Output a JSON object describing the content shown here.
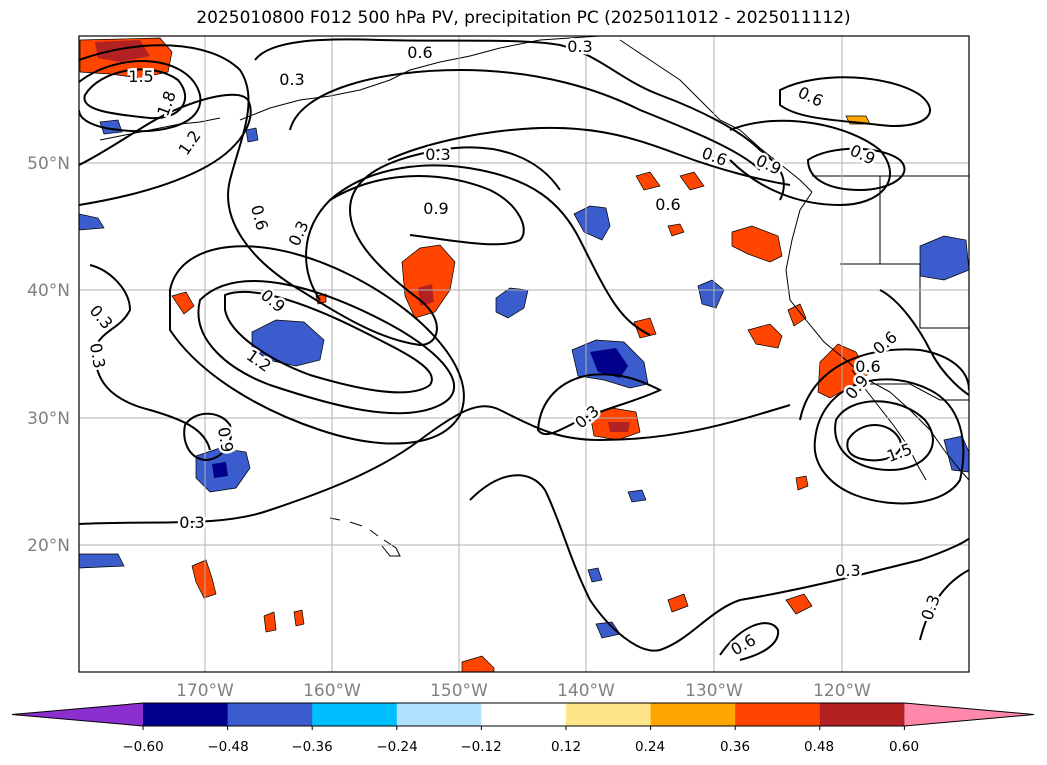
{
  "title": "2025010800 F012 500 hPa PV, precipitation PC (2025011012 - 2025011112)",
  "map": {
    "lat_labels": [
      "50°N",
      "40°N",
      "30°N",
      "20°N"
    ],
    "lon_labels": [
      "170°W",
      "160°W",
      "150°W",
      "140°W",
      "130°W",
      "120°W"
    ],
    "contour_labels": [
      "1.5",
      "1.8",
      "1.2",
      "0.3",
      "0.6",
      "0.6",
      "0.3",
      "0.3",
      "0.6",
      "0.9",
      "0.3",
      "0.9",
      "0.6",
      "0.9",
      "0.6",
      "0.3",
      "0.3",
      "0.9",
      "1.2",
      "0.9",
      "0.3",
      "0.3",
      "0.6",
      "0.3",
      "0.6",
      "0.9",
      "1.5",
      "0.3",
      "0.3",
      "0.6"
    ]
  },
  "colorbar": {
    "ticks": [
      "−0.60",
      "−0.48",
      "−0.36",
      "−0.24",
      "−0.12",
      "0.12",
      "0.24",
      "0.36",
      "0.48",
      "0.60"
    ],
    "colors": [
      "#8b2fd0",
      "#00008b",
      "#3a5ccc",
      "#00bfff",
      "#b0e2ff",
      "#ffffff",
      "#ffe58a",
      "#ffa500",
      "#ff4500",
      "#b22222",
      "#ff88aa"
    ]
  }
}
